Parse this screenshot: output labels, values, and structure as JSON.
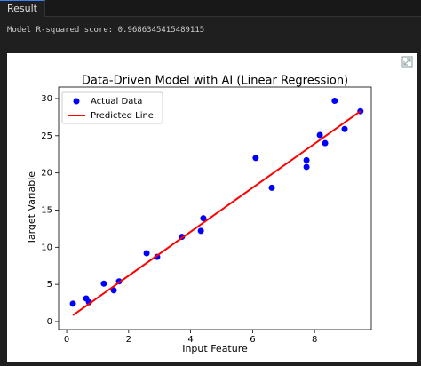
{
  "tab": {
    "label": "Result"
  },
  "output": {
    "text": "Model R-squared score: 0.9686345415489115"
  },
  "chart_data": {
    "type": "scatter",
    "title": "Data-Driven Model with AI (Linear Regression)",
    "x_label": "Input Feature",
    "y_label": "Target Variable",
    "xlim": [
      -0.26,
      9.83
    ],
    "ylim": [
      -1.08,
      31.55
    ],
    "xticks": [
      0,
      2,
      4,
      6,
      8
    ],
    "yticks": [
      0,
      5,
      10,
      15,
      20,
      25,
      30
    ],
    "legend": "upper left",
    "series": [
      {
        "name": "Actual Data",
        "type": "scatter",
        "color": "#0000ff",
        "x": [
          0.2,
          0.63,
          0.72,
          1.2,
          1.52,
          1.69,
          2.58,
          2.92,
          3.72,
          4.33,
          4.41,
          6.1,
          6.62,
          7.74,
          7.74,
          8.17,
          8.34,
          8.65,
          8.97,
          9.48
        ],
        "values": [
          2.4,
          3.1,
          2.6,
          5.1,
          4.2,
          5.4,
          9.2,
          8.7,
          11.4,
          12.2,
          13.9,
          22.0,
          18.0,
          21.7,
          20.8,
          25.1,
          24.0,
          29.7,
          25.9,
          28.3
        ]
      },
      {
        "name": "Predicted Line",
        "type": "line",
        "color": "#ff0000",
        "x": [
          0.2,
          9.48
        ],
        "values": [
          0.84,
          28.3
        ]
      }
    ]
  }
}
